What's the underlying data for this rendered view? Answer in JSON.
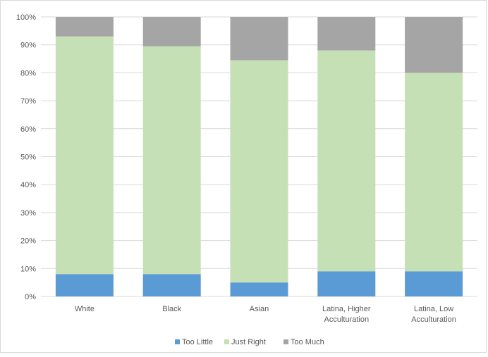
{
  "chart_data": {
    "type": "bar",
    "stacked": true,
    "categories": [
      "White",
      "Black",
      "Asian",
      "Latina, Higher Acculturation",
      "Latina, Low Acculturation"
    ],
    "category_lines": [
      [
        "White"
      ],
      [
        "Black"
      ],
      [
        "Asian"
      ],
      [
        "Latina, Higher",
        "Acculturation"
      ],
      [
        "Latina, Low",
        "Acculturation"
      ]
    ],
    "series": [
      {
        "name": "Too Little",
        "color": "#5b9bd5",
        "values": [
          8,
          8,
          5,
          9,
          9
        ]
      },
      {
        "name": "Just Right",
        "color": "#c5e0b4",
        "values": [
          85,
          81.5,
          79.5,
          79,
          71
        ]
      },
      {
        "name": "Too Much",
        "color": "#a5a5a5",
        "values": [
          7,
          10.5,
          15.5,
          12,
          20
        ]
      }
    ],
    "y_ticks": [
      "0%",
      "10%",
      "20%",
      "30%",
      "40%",
      "50%",
      "60%",
      "70%",
      "80%",
      "90%",
      "100%"
    ],
    "ylim": [
      0,
      100
    ],
    "title": "",
    "xlabel": "",
    "ylabel": "",
    "grid": true,
    "legend": "bottom"
  }
}
